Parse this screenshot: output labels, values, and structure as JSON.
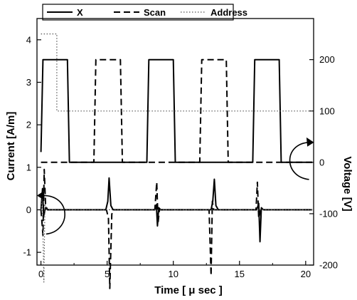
{
  "chart_data": {
    "type": "line",
    "xlabel": "Time [ μ sec ]",
    "ylabel_left": "Current [A/m]",
    "ylabel_right": "Voltage [V]",
    "xlim": [
      -0.3,
      20.6
    ],
    "ylim_left": [
      -1.3,
      4.5
    ],
    "ylim_right": [
      -200,
      280
    ],
    "x_ticks": [
      0,
      5,
      10,
      15,
      20
    ],
    "y_left_ticks": [
      -1,
      0,
      1,
      2,
      3,
      4
    ],
    "y_right_ticks": [
      -200,
      -100,
      0,
      100,
      200
    ],
    "grid": false,
    "legend_position": "top",
    "legend": [
      "X",
      "Scan",
      "Address"
    ],
    "voltage_series": [
      {
        "name": "X",
        "style": "solid",
        "points": [
          [
            0,
            20
          ],
          [
            0.15,
            200
          ],
          [
            2,
            200
          ],
          [
            2.15,
            0
          ],
          [
            8,
            0
          ],
          [
            8.15,
            200
          ],
          [
            10,
            200
          ],
          [
            10.15,
            0
          ],
          [
            16,
            0
          ],
          [
            16.15,
            200
          ],
          [
            18,
            200
          ],
          [
            18.15,
            0
          ],
          [
            20.5,
            0
          ]
        ]
      },
      {
        "name": "Scan",
        "style": "dashed",
        "points": [
          [
            0,
            0
          ],
          [
            4,
            0
          ],
          [
            4.15,
            200
          ],
          [
            6,
            200
          ],
          [
            6.15,
            0
          ],
          [
            12,
            0
          ],
          [
            12.15,
            200
          ],
          [
            14,
            200
          ],
          [
            14.15,
            0
          ],
          [
            20.5,
            0
          ]
        ]
      },
      {
        "name": "Address",
        "style": "dotted",
        "points": [
          [
            0,
            250
          ],
          [
            1.2,
            250
          ],
          [
            1.2,
            100
          ],
          [
            20.5,
            100
          ]
        ]
      }
    ],
    "current_series": [
      {
        "name": "X",
        "style": "solid",
        "points": [
          [
            0,
            0
          ],
          [
            0.12,
            0.5
          ],
          [
            0.2,
            -0.15
          ],
          [
            0.35,
            0.05
          ],
          [
            0.5,
            0
          ],
          [
            4.9,
            0
          ],
          [
            5.05,
            0.2
          ],
          [
            5.15,
            0.75
          ],
          [
            5.28,
            0.1
          ],
          [
            5.45,
            0
          ],
          [
            8.6,
            0
          ],
          [
            8.72,
            0.12
          ],
          [
            8.8,
            -0.38
          ],
          [
            8.9,
            0.05
          ],
          [
            9.05,
            0
          ],
          [
            12.85,
            0
          ],
          [
            12.98,
            0.2
          ],
          [
            13.1,
            0.72
          ],
          [
            13.22,
            0.1
          ],
          [
            13.4,
            0
          ],
          [
            16.3,
            0
          ],
          [
            16.45,
            0.15
          ],
          [
            16.55,
            -0.75
          ],
          [
            16.65,
            0.05
          ],
          [
            16.8,
            0
          ],
          [
            20.5,
            0
          ]
        ]
      },
      {
        "name": "Scan",
        "style": "dashed",
        "points": [
          [
            0,
            0
          ],
          [
            0.15,
            -0.6
          ],
          [
            0.25,
            0.95
          ],
          [
            0.35,
            0.1
          ],
          [
            0.5,
            0
          ],
          [
            4.95,
            0
          ],
          [
            5.1,
            -0.2
          ],
          [
            5.2,
            -1.85
          ],
          [
            5.35,
            -0.1
          ],
          [
            5.5,
            0
          ],
          [
            8.6,
            0
          ],
          [
            8.75,
            0.65
          ],
          [
            8.85,
            -0.3
          ],
          [
            8.95,
            0
          ],
          [
            12.7,
            0
          ],
          [
            12.85,
            -1.55
          ],
          [
            12.95,
            0.2
          ],
          [
            13.05,
            0
          ],
          [
            16.25,
            0
          ],
          [
            16.35,
            0.65
          ],
          [
            16.45,
            -0.2
          ],
          [
            16.6,
            0
          ],
          [
            20.5,
            0
          ]
        ]
      },
      {
        "name": "Address",
        "style": "dotted",
        "points": [
          [
            0,
            0
          ],
          [
            0.1,
            0.3
          ],
          [
            0.22,
            -1.7
          ],
          [
            0.3,
            0.15
          ],
          [
            0.45,
            0
          ],
          [
            20.5,
            0
          ]
        ]
      }
    ],
    "annotations": [
      {
        "shape": "curved-arrow",
        "points_to": "left axis",
        "near": [
          0.5,
          0
        ]
      },
      {
        "shape": "curved-arrow",
        "points_to": "right axis",
        "near": [
          19.5,
          0
        ]
      }
    ]
  }
}
